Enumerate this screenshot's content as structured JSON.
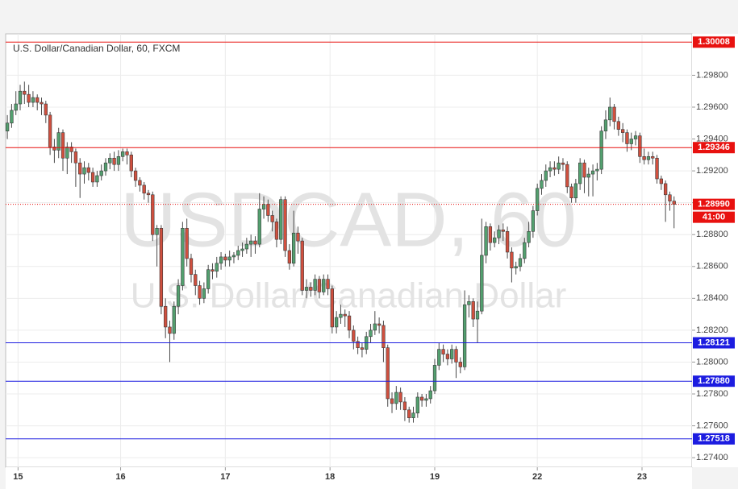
{
  "chart_data": {
    "type": "candlestick",
    "title": "U.S. Dollar/Canadian Dollar, 60, FXCM",
    "watermark": [
      "USDCAD, 60",
      "U.S. Dollar/Canadian Dollar"
    ],
    "countdown": "41:00",
    "up_color": "#53a06f",
    "down_color": "#d0503f",
    "grid": true,
    "xlim": [
      -0.4,
      160.2
    ],
    "ylim": [
      1.2734,
      1.3006
    ],
    "xticks": [
      {
        "value": 2.5,
        "label": "15"
      },
      {
        "value": 26.5,
        "label": "16"
      },
      {
        "value": 51,
        "label": "17"
      },
      {
        "value": 75.5,
        "label": "18"
      },
      {
        "value": 100,
        "label": "19"
      },
      {
        "value": 124,
        "label": "22"
      },
      {
        "value": 148.5,
        "label": "23"
      }
    ],
    "yticks": [
      {
        "value": 1.274,
        "label": "1.27400"
      },
      {
        "value": 1.276,
        "label": "1.27600"
      },
      {
        "value": 1.278,
        "label": "1.27800"
      },
      {
        "value": 1.28,
        "label": "1.28000"
      },
      {
        "value": 1.282,
        "label": "1.28200"
      },
      {
        "value": 1.284,
        "label": "1.28400"
      },
      {
        "value": 1.286,
        "label": "1.28600"
      },
      {
        "value": 1.288,
        "label": "1.28800"
      },
      {
        "value": 1.29,
        "label": "1.29000"
      },
      {
        "value": 1.292,
        "label": "1.29200"
      },
      {
        "value": 1.294,
        "label": "1.29400"
      },
      {
        "value": 1.296,
        "label": "1.29600"
      },
      {
        "value": 1.298,
        "label": "1.29800"
      }
    ],
    "lines": [
      {
        "value": 1.30008,
        "color": "#e8110f"
      },
      {
        "value": 1.29346,
        "color": "#e8110f"
      },
      {
        "value": 1.2899,
        "label": "1.28990",
        "color": "#e8110f",
        "dotted": true
      },
      {
        "value": 1.28121,
        "color": "#1c1ce0"
      },
      {
        "value": 1.2788,
        "label": "1.27880",
        "color": "#1c1ce0"
      },
      {
        "value": 1.27518,
        "color": "#1c1ce0"
      }
    ],
    "x": [
      0,
      1,
      2,
      3,
      4,
      5,
      6,
      7,
      8,
      9,
      10,
      11,
      12,
      13,
      14,
      15,
      16,
      17,
      18,
      19,
      20,
      21,
      22,
      23,
      24,
      25,
      26,
      27,
      28,
      29,
      30,
      31,
      32,
      33,
      34,
      35,
      36,
      37,
      38,
      39,
      40,
      41,
      42,
      43,
      44,
      45,
      46,
      47,
      48,
      49,
      50,
      51,
      52,
      53,
      54,
      55,
      56,
      57,
      58,
      59,
      60,
      61,
      62,
      63,
      64,
      65,
      66,
      67,
      68,
      69,
      70,
      71,
      72,
      73,
      74,
      75,
      76,
      77,
      78,
      79,
      80,
      81,
      82,
      83,
      84,
      85,
      86,
      87,
      88,
      89,
      90,
      91,
      92,
      93,
      94,
      95,
      96,
      97,
      98,
      99,
      100,
      101,
      102,
      103,
      104,
      105,
      106,
      107,
      108,
      109,
      110,
      111,
      112,
      113,
      114,
      115,
      116,
      117,
      118,
      119,
      120,
      121,
      122,
      123,
      124,
      125,
      126,
      127,
      128,
      129,
      130,
      131,
      132,
      133,
      134,
      135,
      136,
      137,
      138,
      139,
      140,
      141,
      142,
      143,
      144,
      145,
      146,
      147,
      148,
      149,
      150,
      151,
      152,
      153,
      154,
      155,
      156
    ],
    "open": [
      1.2945,
      1.295,
      1.2958,
      1.2962,
      1.297,
      1.2968,
      1.2963,
      1.2966,
      1.2963,
      1.2962,
      1.2955,
      1.2935,
      1.2933,
      1.2944,
      1.2928,
      1.2935,
      1.2932,
      1.2925,
      1.2918,
      1.2922,
      1.2919,
      1.2913,
      1.2917,
      1.292,
      1.2925,
      1.2928,
      1.2924,
      1.2929,
      1.2932,
      1.293,
      1.292,
      1.2914,
      1.2911,
      1.2906,
      1.2905,
      1.288,
      1.2884,
      1.2835,
      1.2822,
      1.2818,
      1.2835,
      1.2848,
      1.2884,
      1.2865,
      1.2855,
      1.2848,
      1.284,
      1.2846,
      1.2858,
      1.2857,
      1.2862,
      1.2866,
      1.2864,
      1.2866,
      1.2867,
      1.287,
      1.2871,
      1.2874,
      1.2876,
      1.2874,
      1.2896,
      1.2899,
      1.2892,
      1.2888,
      1.2877,
      1.2902,
      1.287,
      1.2862,
      1.2881,
      1.2876,
      1.2845,
      1.2847,
      1.2845,
      1.2852,
      1.2844,
      1.2852,
      1.2846,
      1.2822,
      1.2828,
      1.283,
      1.2829,
      1.282,
      1.2813,
      1.2809,
      1.2808,
      1.2816,
      1.282,
      1.2824,
      1.2823,
      1.2809,
      1.2777,
      1.2774,
      1.2781,
      1.2775,
      1.277,
      1.2765,
      1.2768,
      1.2778,
      1.2776,
      1.2777,
      1.2782,
      1.2798,
      1.2808,
      1.2805,
      1.2802,
      1.2808,
      1.28,
      1.2797,
      1.2836,
      1.2838,
      1.2827,
      1.2832,
      1.2867,
      1.2885,
      1.2875,
      1.2878,
      1.2883,
      1.2882,
      1.2869,
      1.2859,
      1.286,
      1.2865,
      1.2875,
      1.2882,
      1.2895,
      1.2909,
      1.2914,
      1.292,
      1.2922,
      1.2921,
      1.2925,
      1.2924,
      1.291,
      1.2903,
      1.2912,
      1.2925,
      1.2916,
      1.2918,
      1.292,
      1.2921,
      1.2945,
      1.2952,
      1.296,
      1.2951,
      1.2946,
      1.2944,
      1.2937,
      1.294,
      1.2942,
      1.2929,
      1.2927,
      1.2929,
      1.2928,
      1.2915,
      1.2912,
      1.2905,
      1.2901
    ],
    "high": [
      1.2955,
      1.2962,
      1.297,
      1.2974,
      1.2976,
      1.2974,
      1.297,
      1.2968,
      1.2966,
      1.2964,
      1.2957,
      1.294,
      1.2947,
      1.2946,
      1.2938,
      1.2938,
      1.2934,
      1.2928,
      1.2926,
      1.2925,
      1.2922,
      1.292,
      1.2924,
      1.2928,
      1.2931,
      1.2932,
      1.2933,
      1.2934,
      1.2934,
      1.2932,
      1.2922,
      1.2916,
      1.2913,
      1.2908,
      1.2907,
      1.2886,
      1.2886,
      1.284,
      1.2826,
      1.2838,
      1.2852,
      1.2888,
      1.289,
      1.2868,
      1.2858,
      1.2851,
      1.285,
      1.2861,
      1.2862,
      1.2866,
      1.2869,
      1.2868,
      1.287,
      1.2869,
      1.2873,
      1.2875,
      1.2878,
      1.288,
      1.2879,
      1.2906,
      1.2904,
      1.2902,
      1.2895,
      1.289,
      1.2904,
      1.2904,
      1.2874,
      1.2895,
      1.2885,
      1.2878,
      1.2852,
      1.285,
      1.2855,
      1.2854,
      1.2855,
      1.2855,
      1.2848,
      1.2832,
      1.2836,
      1.2833,
      1.2832,
      1.2823,
      1.2816,
      1.2812,
      1.2819,
      1.2824,
      1.2832,
      1.2828,
      1.2826,
      1.2811,
      1.2781,
      1.2785,
      1.2784,
      1.2778,
      1.2772,
      1.2772,
      1.2781,
      1.278,
      1.278,
      1.2785,
      1.2802,
      1.2812,
      1.2811,
      1.2808,
      1.2811,
      1.281,
      1.2803,
      1.2845,
      1.2842,
      1.284,
      1.2838,
      1.289,
      1.2888,
      1.2887,
      1.2882,
      1.2886,
      1.2887,
      1.2885,
      1.2872,
      1.2863,
      1.2868,
      1.2878,
      1.2888,
      1.2898,
      1.2912,
      1.2918,
      1.2924,
      1.2926,
      1.2926,
      1.2929,
      1.2928,
      1.2926,
      1.2912,
      1.2915,
      1.2928,
      1.2927,
      1.2922,
      1.2924,
      1.2925,
      1.2948,
      1.2958,
      1.2966,
      1.2962,
      1.2954,
      1.295,
      1.2946,
      1.2944,
      1.2945,
      1.2944,
      1.2934,
      1.2932,
      1.2932,
      1.293,
      1.2917,
      1.2914,
      1.2907,
      1.2904
    ],
    "low": [
      1.294,
      1.2947,
      1.2955,
      1.2958,
      1.2962,
      1.296,
      1.296,
      1.2958,
      1.2955,
      1.295,
      1.293,
      1.2925,
      1.2928,
      1.292,
      1.2918,
      1.2925,
      1.291,
      1.2903,
      1.2912,
      1.2914,
      1.291,
      1.291,
      1.2914,
      1.2917,
      1.2921,
      1.292,
      1.292,
      1.2926,
      1.2924,
      1.2916,
      1.291,
      1.2907,
      1.2902,
      1.29,
      1.2876,
      1.286,
      1.283,
      1.2815,
      1.28,
      1.2814,
      1.283,
      1.2845,
      1.286,
      1.285,
      1.2842,
      1.2836,
      1.2837,
      1.2843,
      1.2852,
      1.2853,
      1.2858,
      1.286,
      1.286,
      1.2862,
      1.2864,
      1.2866,
      1.2868,
      1.2866,
      1.2868,
      1.2872,
      1.289,
      1.2888,
      1.2882,
      1.2872,
      1.2874,
      1.2866,
      1.2858,
      1.286,
      1.2868,
      1.2842,
      1.284,
      1.2841,
      1.2842,
      1.284,
      1.2842,
      1.2842,
      1.2818,
      1.2818,
      1.2824,
      1.2822,
      1.2815,
      1.2808,
      1.2805,
      1.2803,
      1.2805,
      1.2812,
      1.2817,
      1.2818,
      1.28,
      1.2772,
      1.2768,
      1.277,
      1.277,
      1.2763,
      1.2762,
      1.2762,
      1.2765,
      1.2772,
      1.2772,
      1.2774,
      1.278,
      1.2795,
      1.28,
      1.2798,
      1.2799,
      1.279,
      1.2793,
      1.2795,
      1.2828,
      1.2822,
      1.2812,
      1.283,
      1.2862,
      1.287,
      1.2872,
      1.2874,
      1.2876,
      1.2865,
      1.285,
      1.2855,
      1.2857,
      1.2862,
      1.2872,
      1.2878,
      1.2892,
      1.2905,
      1.291,
      1.2916,
      1.2917,
      1.2918,
      1.292,
      1.2906,
      1.29,
      1.29,
      1.2908,
      1.2906,
      1.2904,
      1.2904,
      1.2914,
      1.2918,
      1.294,
      1.2948,
      1.2946,
      1.2942,
      1.2938,
      1.2932,
      1.2933,
      1.2936,
      1.2925,
      1.2924,
      1.2924,
      1.2924,
      1.2912,
      1.2908,
      1.2888,
      1.2895,
      1.2884
    ],
    "close": [
      1.295,
      1.2958,
      1.2962,
      1.297,
      1.2968,
      1.2963,
      1.2966,
      1.2963,
      1.2962,
      1.2955,
      1.2935,
      1.2933,
      1.2944,
      1.2928,
      1.2935,
      1.2932,
      1.2925,
      1.2918,
      1.2922,
      1.2919,
      1.2913,
      1.2917,
      1.292,
      1.2925,
      1.2928,
      1.2924,
      1.2929,
      1.2932,
      1.293,
      1.292,
      1.2914,
      1.2911,
      1.2906,
      1.2905,
      1.288,
      1.2884,
      1.2835,
      1.2822,
      1.2818,
      1.2835,
      1.2848,
      1.2884,
      1.2865,
      1.2855,
      1.2848,
      1.284,
      1.2846,
      1.2858,
      1.2857,
      1.2862,
      1.2866,
      1.2864,
      1.2866,
      1.2867,
      1.287,
      1.2871,
      1.2874,
      1.2876,
      1.2874,
      1.2896,
      1.2899,
      1.2892,
      1.2888,
      1.2877,
      1.2902,
      1.287,
      1.2862,
      1.2881,
      1.2876,
      1.2845,
      1.2847,
      1.2845,
      1.2852,
      1.2844,
      1.2852,
      1.2846,
      1.2822,
      1.2828,
      1.283,
      1.2829,
      1.282,
      1.2813,
      1.2809,
      1.2808,
      1.2816,
      1.282,
      1.2824,
      1.2823,
      1.2809,
      1.2777,
      1.2774,
      1.2781,
      1.2775,
      1.277,
      1.2765,
      1.2768,
      1.2778,
      1.2776,
      1.2777,
      1.2782,
      1.2798,
      1.2808,
      1.2805,
      1.2802,
      1.2808,
      1.28,
      1.2797,
      1.2836,
      1.2838,
      1.2827,
      1.2832,
      1.2867,
      1.2885,
      1.2875,
      1.2878,
      1.2883,
      1.2882,
      1.2869,
      1.2859,
      1.286,
      1.2865,
      1.2875,
      1.2882,
      1.2895,
      1.2909,
      1.2914,
      1.292,
      1.2922,
      1.2921,
      1.2925,
      1.2924,
      1.291,
      1.2903,
      1.2912,
      1.2925,
      1.2916,
      1.2918,
      1.292,
      1.2921,
      1.2945,
      1.2952,
      1.296,
      1.2951,
      1.2946,
      1.2944,
      1.2937,
      1.294,
      1.2942,
      1.2929,
      1.2927,
      1.2929,
      1.2928,
      1.2915,
      1.2912,
      1.2905,
      1.2901,
      1.2899
    ]
  }
}
